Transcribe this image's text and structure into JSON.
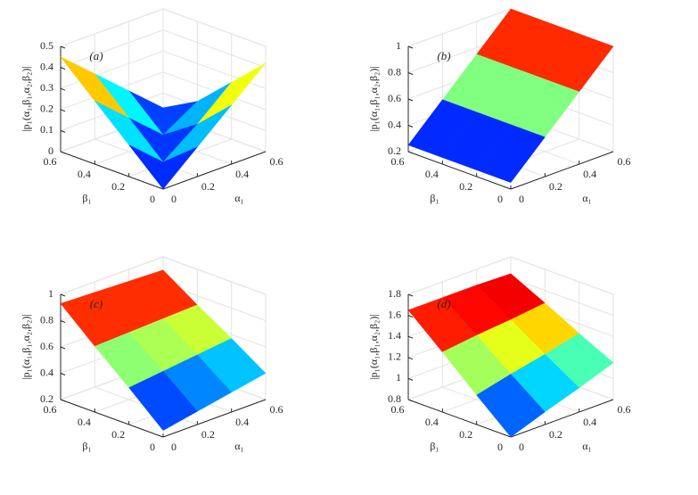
{
  "chart_data": [
    {
      "type": "surface",
      "annotation": "(a)",
      "xlabel": "α₁",
      "ylabel": "β₁",
      "zlabel": "|p₁(α₁,β₁,α₂,β₂)|",
      "x": [
        0,
        0.2,
        0.4,
        0.6
      ],
      "y": [
        0,
        0.2,
        0.4,
        0.6
      ],
      "z": [
        [
          0,
          0.14,
          0.28,
          0.42
        ],
        [
          0.15,
          0.01,
          0.13,
          0.27
        ],
        [
          0.3,
          0.16,
          0.02,
          0.12
        ],
        [
          0.45,
          0.31,
          0.17,
          0.03
        ]
      ],
      "xlim": [
        0,
        0.6
      ],
      "ylim": [
        0,
        0.6
      ],
      "zlim": [
        0,
        0.5
      ],
      "xticks": [
        0,
        0.2,
        0.4,
        0.6
      ],
      "yticks": [
        0,
        0.2,
        0.4,
        0.6
      ],
      "zticks": [
        0,
        0.1,
        0.2,
        0.3,
        0.4,
        0.5
      ],
      "colormap": "jet",
      "grid": true
    },
    {
      "type": "surface",
      "annotation": "(b)",
      "xlabel": "α₁",
      "ylabel": "β₁",
      "zlabel": "|p₁(α₁,β₁,α₂,β₂)|",
      "x": [
        0,
        0.2,
        0.4,
        0.6
      ],
      "y": [
        0,
        0.2,
        0.4,
        0.6
      ],
      "z": [
        [
          0.25,
          0.5,
          0.75,
          1.0
        ],
        [
          0.25,
          0.5,
          0.75,
          1.0
        ],
        [
          0.25,
          0.5,
          0.75,
          1.0
        ],
        [
          0.25,
          0.5,
          0.75,
          1.0
        ]
      ],
      "xlim": [
        0,
        0.6
      ],
      "ylim": [
        0,
        0.6
      ],
      "zlim": [
        0.2,
        1
      ],
      "xticks": [
        0,
        0.2,
        0.4,
        0.6
      ],
      "yticks": [
        0,
        0.2,
        0.4,
        0.6
      ],
      "zticks": [
        0.2,
        0.4,
        0.6,
        0.8,
        1
      ],
      "colormap": "jet",
      "grid": true
    },
    {
      "type": "surface",
      "annotation": "(c)",
      "xlabel": "α₁",
      "ylabel": "β₁",
      "zlabel": "|p₁(α₁,β₁,α₂,β₂)|",
      "x": [
        0,
        0.2,
        0.4,
        0.6
      ],
      "y": [
        0,
        0.2,
        0.4,
        0.6
      ],
      "z": [
        [
          0.25,
          0.3,
          0.35,
          0.4
        ],
        [
          0.48,
          0.51,
          0.54,
          0.57
        ],
        [
          0.7,
          0.71,
          0.72,
          0.73
        ],
        [
          0.93,
          0.92,
          0.91,
          0.9
        ]
      ],
      "xlim": [
        0,
        0.6
      ],
      "ylim": [
        0,
        0.6
      ],
      "zlim": [
        0.2,
        1
      ],
      "xticks": [
        0,
        0.2,
        0.4,
        0.6
      ],
      "yticks": [
        0,
        0.2,
        0.4,
        0.6
      ],
      "zticks": [
        0.2,
        0.4,
        0.6,
        0.8,
        1
      ],
      "colormap": "jet",
      "grid": true
    },
    {
      "type": "surface",
      "annotation": "(d)",
      "xlabel": "α₁",
      "ylabel": "β₁",
      "zlabel": "|p₁(α₁,β₁,α₂,β₂)|",
      "x": [
        0,
        0.2,
        0.4,
        0.6
      ],
      "y": [
        0,
        0.2,
        0.4,
        0.6
      ],
      "z": [
        [
          0.8,
          0.92,
          1.03,
          1.15
        ],
        [
          1.08,
          1.16,
          1.23,
          1.31
        ],
        [
          1.37,
          1.41,
          1.44,
          1.48
        ],
        [
          1.65,
          1.65,
          1.65,
          1.64
        ]
      ],
      "xlim": [
        0,
        0.6
      ],
      "ylim": [
        0,
        0.6
      ],
      "zlim": [
        0.8,
        1.8
      ],
      "xticks": [
        0,
        0.2,
        0.4,
        0.6
      ],
      "yticks": [
        0,
        0.2,
        0.4,
        0.6
      ],
      "zticks": [
        0.8,
        1,
        1.2,
        1.4,
        1.6,
        1.8
      ],
      "colormap": "jet",
      "grid": true
    }
  ]
}
